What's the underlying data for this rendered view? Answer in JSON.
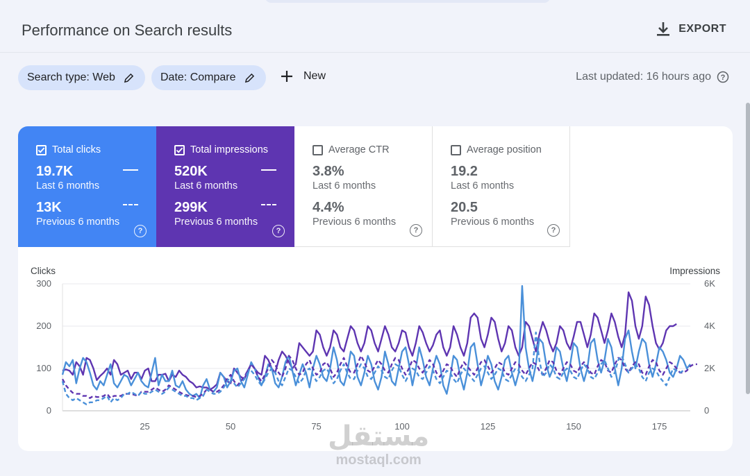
{
  "header": {
    "title": "Performance on Search results",
    "export_label": "EXPORT"
  },
  "filters": {
    "search_type": "Search type: Web",
    "date": "Date: Compare",
    "new_label": "New",
    "last_updated": "Last updated: 16 hours ago"
  },
  "metrics": {
    "clicks": {
      "label": "Total clicks",
      "value": "19.7K",
      "period": "Last 6 months",
      "prev_value": "13K",
      "prev_period": "Previous 6 months",
      "checked": true,
      "color": "#4285f4"
    },
    "impressions": {
      "label": "Total impressions",
      "value": "520K",
      "period": "Last 6 months",
      "prev_value": "299K",
      "prev_period": "Previous 6 months",
      "checked": true,
      "color": "#5e35b1"
    },
    "ctr": {
      "label": "Average CTR",
      "value": "3.8%",
      "period": "Last 6 months",
      "prev_value": "4.4%",
      "prev_period": "Previous 6 months",
      "checked": false
    },
    "position": {
      "label": "Average position",
      "value": "19.2",
      "period": "Last 6 months",
      "prev_value": "20.5",
      "prev_period": "Previous 6 months",
      "checked": false
    }
  },
  "watermark": {
    "arabic": "مستقل",
    "latin": "mostaql.com"
  },
  "chart_data": {
    "type": "line",
    "ylabel": "Clicks",
    "y2label": "Impressions",
    "ylim": [
      0,
      300
    ],
    "y2lim": [
      0,
      6000
    ],
    "yticks": [
      "300",
      "200",
      "100",
      "0"
    ],
    "y2ticks": [
      "6K",
      "4K",
      "2K",
      "0"
    ],
    "xticks": [
      25,
      50,
      75,
      100,
      125,
      150,
      175
    ],
    "xlim": [
      1,
      184
    ],
    "series": [
      {
        "color": "#5e35b1",
        "dashed": false,
        "axis": "right",
        "values": [
          1900,
          1950,
          1900,
          1700,
          2300,
          2100,
          1700,
          2500,
          2400,
          2000,
          1450,
          1650,
          1800,
          2000,
          1700,
          2400,
          2200,
          1700,
          1800,
          1900,
          1500,
          1800,
          1800,
          1500,
          1900,
          2000,
          1400,
          1400,
          1700,
          1700,
          1750,
          1400,
          1700,
          1600,
          1900,
          1700,
          1600,
          1400,
          1300,
          1100,
          1150,
          1100,
          1100,
          1000,
          1100,
          1250,
          1800,
          1600,
          1400,
          1300,
          2000,
          1800,
          1600,
          1500,
          1900,
          2200,
          2000,
          1800,
          1700,
          2600,
          2400,
          2000,
          1800,
          2400,
          2800,
          2600,
          2300,
          2000,
          2200,
          3200,
          3000,
          2800,
          2600,
          2800,
          3800,
          3600,
          3000,
          2600,
          3000,
          3800,
          3600,
          3000,
          2800,
          3400,
          4000,
          3800,
          3200,
          2800,
          3200,
          4000,
          3800,
          3200,
          2800,
          3400,
          4000,
          3600,
          3000,
          2800,
          3200,
          3800,
          3700,
          3000,
          2600,
          3200,
          4000,
          3700,
          3200,
          2800,
          3100,
          3600,
          3800,
          3000,
          2600,
          3000,
          4000,
          3600,
          3000,
          2600,
          3200,
          4400,
          4600,
          4400,
          3400,
          3000,
          3600,
          4400,
          4200,
          3400,
          2800,
          3200,
          4000,
          3800,
          3000,
          2600,
          3000,
          4200,
          4000,
          3400,
          2800,
          3600,
          4200,
          3800,
          3200,
          2800,
          3200,
          4000,
          3800,
          3200,
          2900,
          3500,
          4200,
          4200,
          3600,
          3000,
          3600,
          4600,
          4400,
          3800,
          3200,
          3800,
          4600,
          4200,
          3500,
          3000,
          3600,
          5600,
          5200,
          4000,
          3400,
          4000,
          5400,
          5000,
          4000,
          3200,
          2900,
          3200,
          3800,
          4000,
          4000,
          4100
        ]
      },
      {
        "color": "#4a90d9",
        "dashed": false,
        "axis": "left",
        "values": [
          85,
          115,
          105,
          120,
          65,
          100,
          125,
          115,
          90,
          60,
          50,
          70,
          60,
          85,
          110,
          65,
          55,
          70,
          85,
          80,
          60,
          75,
          90,
          70,
          60,
          55,
          90,
          125,
          60,
          85,
          70,
          70,
          95,
          60,
          55,
          70,
          50,
          40,
          35,
          40,
          30,
          60,
          75,
          50,
          45,
          55,
          90,
          80,
          55,
          70,
          95,
          100,
          70,
          55,
          85,
          115,
          100,
          80,
          60,
          80,
          110,
          100,
          65,
          55,
          80,
          115,
          130,
          95,
          60,
          85,
          110,
          90,
          55,
          100,
          130,
          110,
          80,
          70,
          100,
          150,
          120,
          70,
          60,
          90,
          140,
          130,
          80,
          60,
          90,
          130,
          110,
          70,
          50,
          80,
          140,
          110,
          70,
          60,
          100,
          140,
          150,
          110,
          60,
          100,
          150,
          120,
          80,
          60,
          100,
          130,
          110,
          60,
          40,
          80,
          130,
          120,
          80,
          50,
          90,
          150,
          160,
          110,
          60,
          90,
          130,
          110,
          70,
          50,
          80,
          120,
          130,
          90,
          60,
          90,
          295,
          150,
          100,
          70,
          110,
          170,
          160,
          110,
          80,
          100,
          150,
          140,
          100,
          70,
          110,
          160,
          150,
          100,
          70,
          100,
          160,
          170,
          120,
          90,
          120,
          170,
          150,
          100,
          60,
          100,
          170,
          190,
          140,
          100,
          140,
          170,
          160,
          110,
          80,
          110,
          150,
          140,
          120,
          90,
          80,
          100,
          130,
          120,
          100,
          110
        ]
      },
      {
        "color": "#5e35b1",
        "dashed": true,
        "axis": "right",
        "values": [
          1500,
          1200,
          1000,
          850,
          800,
          800,
          700,
          700,
          600,
          700,
          650,
          650,
          700,
          800,
          600,
          700,
          700,
          700,
          800,
          800,
          800,
          750,
          700,
          900,
          900,
          900,
          1000,
          1100,
          1000,
          900,
          1000,
          1200,
          1100,
          1000,
          900,
          800,
          750,
          700,
          700,
          650,
          700,
          800,
          1000,
          1000,
          900,
          900,
          1000,
          1200,
          1500,
          1700,
          1400,
          1200,
          1400,
          1600,
          1900,
          2200,
          2000,
          1600,
          1400,
          1700,
          2000,
          2400,
          2200,
          1800,
          1600,
          2000,
          2600,
          2400,
          2000,
          1700,
          1800,
          2200,
          2400,
          2000,
          1700,
          1800,
          2200,
          2300,
          2000,
          1600,
          1800,
          2200,
          2500,
          2100,
          1800,
          1800,
          2200,
          2600,
          2300,
          1900,
          1800,
          2100,
          2400,
          2200,
          1900,
          1800,
          2200,
          2500,
          2400,
          2000,
          1700,
          2000,
          2400,
          2300,
          2000,
          1800,
          2100,
          2400,
          2200,
          1800,
          1600,
          1900,
          2200,
          2100,
          1800,
          1600,
          2000,
          2300,
          2100,
          1900,
          1700,
          2000,
          2300,
          2400,
          2100,
          1800,
          2000,
          2300,
          2200,
          1800,
          1700,
          2000,
          2300,
          2200,
          1900,
          1700,
          2000,
          2300,
          2200,
          1900,
          1700,
          2000,
          2400,
          2300,
          1900,
          1700,
          2000,
          2300,
          2200,
          1900,
          1800,
          2100,
          2300,
          2100,
          1800,
          1700,
          2100,
          2400,
          2300,
          1900,
          1800,
          2200,
          2500,
          2400,
          2000,
          1800,
          2100,
          2300,
          2200,
          1800,
          1700,
          2100,
          2400,
          2300,
          1900,
          1700,
          2000,
          2300,
          2200,
          2000,
          1800,
          1800,
          1900,
          2100,
          2200,
          2200
        ]
      },
      {
        "color": "#4a90d9",
        "dashed": true,
        "axis": "left",
        "values": [
          70,
          40,
          30,
          25,
          30,
          25,
          20,
          15,
          20,
          20,
          25,
          25,
          30,
          35,
          20,
          30,
          25,
          30,
          40,
          40,
          45,
          40,
          35,
          45,
          40,
          40,
          45,
          50,
          45,
          40,
          45,
          55,
          50,
          45,
          40,
          35,
          35,
          30,
          30,
          25,
          30,
          35,
          50,
          45,
          40,
          40,
          45,
          55,
          70,
          80,
          65,
          55,
          65,
          75,
          90,
          95,
          85,
          70,
          60,
          75,
          90,
          100,
          90,
          70,
          60,
          80,
          100,
          95,
          80,
          65,
          75,
          95,
          100,
          85,
          70,
          80,
          95,
          100,
          85,
          65,
          75,
          95,
          110,
          90,
          75,
          75,
          95,
          110,
          100,
          80,
          75,
          90,
          105,
          95,
          80,
          75,
          95,
          110,
          105,
          85,
          70,
          85,
          100,
          95,
          80,
          75,
          90,
          105,
          95,
          75,
          65,
          80,
          95,
          90,
          75,
          65,
          85,
          100,
          90,
          80,
          70,
          85,
          100,
          105,
          90,
          75,
          85,
          100,
          95,
          75,
          70,
          85,
          100,
          95,
          80,
          70,
          85,
          100,
          185,
          120,
          80,
          90,
          110,
          100,
          80,
          75,
          90,
          100,
          95,
          80,
          75,
          95,
          110,
          100,
          80,
          75,
          90,
          110,
          120,
          100,
          80,
          90,
          120,
          130,
          110,
          90,
          100,
          110,
          100,
          80,
          70,
          90,
          100,
          95,
          80,
          70,
          60,
          80,
          100,
          95,
          90,
          95
        ]
      }
    ]
  }
}
